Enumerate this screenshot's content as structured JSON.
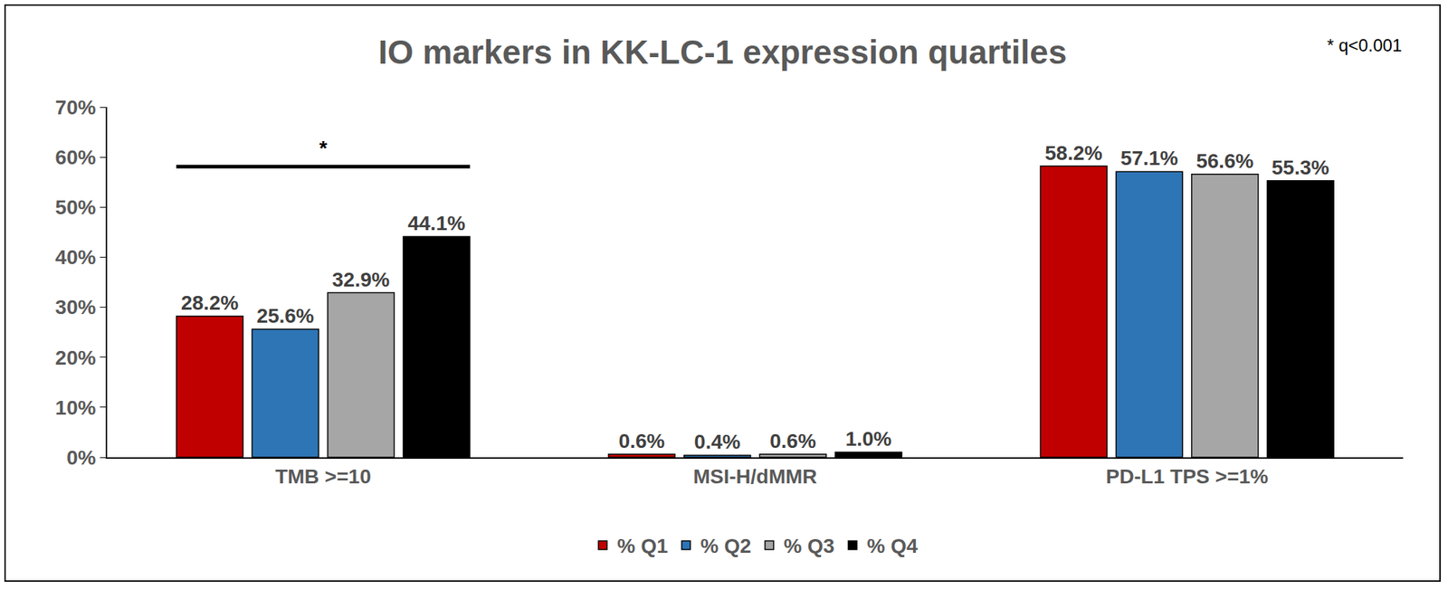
{
  "chart_data": {
    "type": "bar",
    "title": "IO markers in KK-LC-1 expression quartiles",
    "categories": [
      "TMB >=10",
      "MSI-H/dMMR",
      "PD-L1 TPS >=1%"
    ],
    "series": [
      {
        "name": "% Q1",
        "color": "#c00000",
        "values": [
          28.2,
          0.6,
          58.2
        ],
        "value_labels": [
          "28.2%",
          "0.6%",
          "58.2%"
        ]
      },
      {
        "name": "% Q2",
        "color": "#2e75b6",
        "values": [
          25.6,
          0.4,
          57.1
        ],
        "value_labels": [
          "25.6%",
          "0.4%",
          "57.1%"
        ]
      },
      {
        "name": "% Q3",
        "color": "#a6a6a6",
        "values": [
          32.9,
          0.6,
          56.6
        ],
        "value_labels": [
          "32.9%",
          "0.6%",
          "56.6%"
        ]
      },
      {
        "name": "% Q4",
        "color": "#000000",
        "values": [
          44.1,
          1.0,
          55.3
        ],
        "value_labels": [
          "44.1%",
          "1.0%",
          "55.3%"
        ]
      }
    ],
    "ylim": [
      0,
      70
    ],
    "yticks": [
      {
        "value": 0,
        "label": "0%"
      },
      {
        "value": 10,
        "label": "10%"
      },
      {
        "value": 20,
        "label": "20%"
      },
      {
        "value": 30,
        "label": "30%"
      },
      {
        "value": 40,
        "label": "40%"
      },
      {
        "value": 50,
        "label": "50%"
      },
      {
        "value": 60,
        "label": "60%"
      },
      {
        "value": 70,
        "label": "70%"
      }
    ],
    "grid": false,
    "legend": "bottom",
    "data_labels": true,
    "annotations": [
      {
        "text": "* q<0.001"
      },
      {
        "text": "*",
        "category": "TMB >=10"
      }
    ]
  }
}
